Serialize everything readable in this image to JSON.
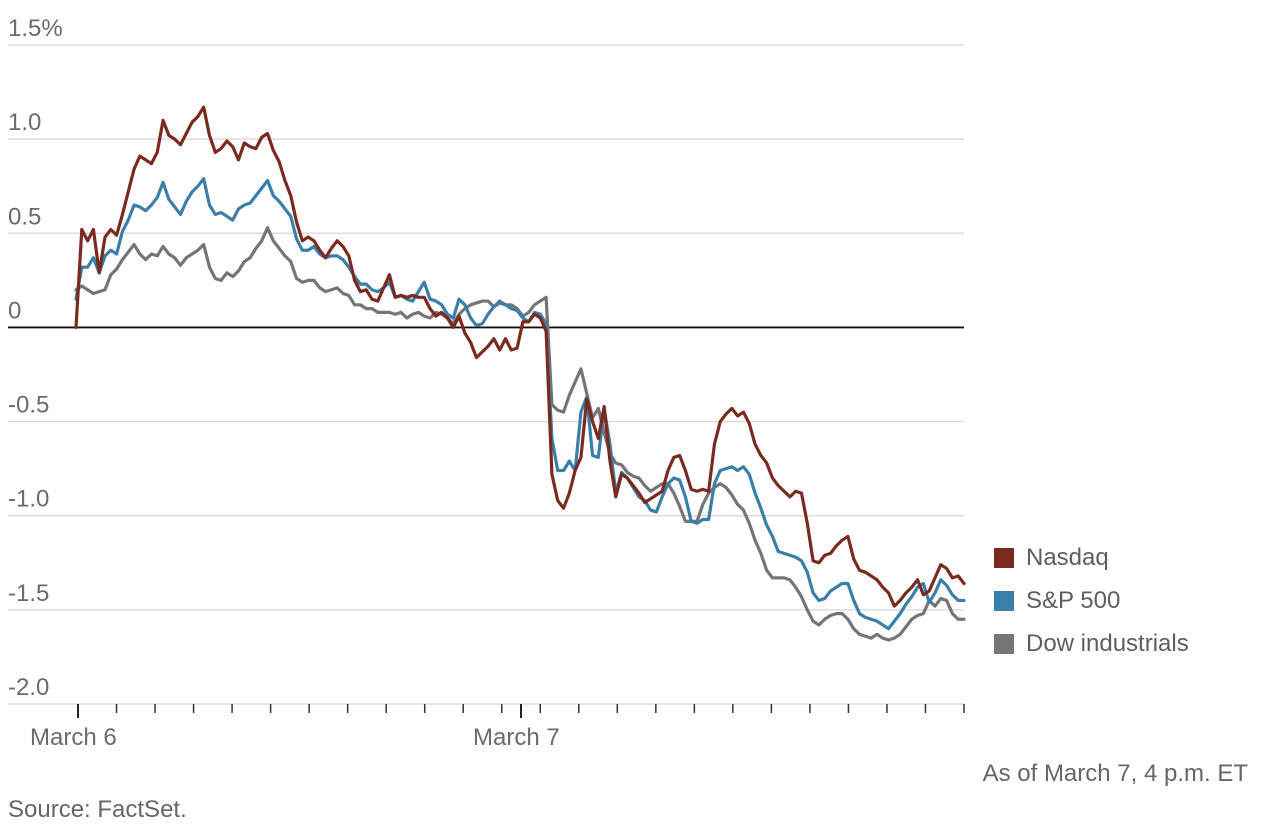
{
  "chart_data": {
    "type": "line",
    "y_ticks": [
      "1.5%",
      "1.0",
      "0.5",
      "0",
      "-0.5",
      "-1.0",
      "-1.5",
      "-2.0"
    ],
    "y_tick_values": [
      1.5,
      1.0,
      0.5,
      0,
      -0.5,
      -1.0,
      -1.5,
      -2.0
    ],
    "ylim": [
      -2.0,
      1.5
    ],
    "x_tick_labels": [
      "March 6",
      "March 7"
    ],
    "x_range": [
      0,
      12
    ],
    "x_label_positions": [
      0,
      6
    ],
    "x_minor_ticks": 24,
    "grid": true,
    "legend_position": "right",
    "series": [
      {
        "name": "Nasdaq",
        "color": "#7a2a1f",
        "values": [
          0.0,
          0.52,
          0.46,
          0.52,
          0.29,
          0.48,
          0.52,
          0.49,
          0.6,
          0.72,
          0.84,
          0.91,
          0.89,
          0.87,
          0.93,
          1.1,
          1.02,
          1.0,
          0.97,
          1.03,
          1.09,
          1.12,
          1.17,
          1.02,
          0.93,
          0.95,
          0.99,
          0.96,
          0.89,
          0.98,
          0.96,
          0.95,
          1.01,
          1.03,
          0.94,
          0.88,
          0.78,
          0.7,
          0.56,
          0.46,
          0.48,
          0.46,
          0.41,
          0.37,
          0.42,
          0.46,
          0.43,
          0.38,
          0.25,
          0.19,
          0.2,
          0.15,
          0.14,
          0.21,
          0.28,
          0.16,
          0.17,
          0.16,
          0.17,
          0.16,
          0.16,
          0.1,
          0.06,
          0.08,
          0.05,
          0.0,
          0.06,
          -0.03,
          -0.08,
          -0.16,
          -0.13,
          -0.1,
          -0.06,
          -0.12,
          -0.06,
          -0.12,
          -0.11,
          0.03,
          0.03,
          0.07,
          0.05,
          -0.02,
          -0.78,
          -0.92,
          -0.96,
          -0.88,
          -0.76,
          -0.69,
          -0.38,
          -0.5,
          -0.59,
          -0.42,
          -0.71,
          -0.9,
          -0.78,
          -0.8,
          -0.84,
          -0.88,
          -0.93,
          -0.91,
          -0.89,
          -0.87,
          -0.76,
          -0.69,
          -0.68,
          -0.76,
          -0.86,
          -0.87,
          -0.86,
          -0.87,
          -0.62,
          -0.5,
          -0.46,
          -0.43,
          -0.47,
          -0.45,
          -0.51,
          -0.62,
          -0.68,
          -0.72,
          -0.8,
          -0.84,
          -0.87,
          -0.9,
          -0.87,
          -0.88,
          -1.04,
          -1.24,
          -1.25,
          -1.21,
          -1.2,
          -1.16,
          -1.13,
          -1.11,
          -1.23,
          -1.29,
          -1.3,
          -1.32,
          -1.34,
          -1.38,
          -1.41,
          -1.48,
          -1.45,
          -1.41,
          -1.38,
          -1.34,
          -1.42,
          -1.4,
          -1.33,
          -1.26,
          -1.28,
          -1.33,
          -1.32,
          -1.36
        ]
      },
      {
        "name": "S&P 500",
        "color": "#3a7fa8",
        "values": [
          0.15,
          0.32,
          0.32,
          0.37,
          0.29,
          0.38,
          0.41,
          0.39,
          0.51,
          0.57,
          0.65,
          0.64,
          0.62,
          0.65,
          0.69,
          0.77,
          0.68,
          0.64,
          0.6,
          0.67,
          0.72,
          0.75,
          0.79,
          0.65,
          0.6,
          0.61,
          0.59,
          0.57,
          0.63,
          0.65,
          0.66,
          0.7,
          0.74,
          0.78,
          0.7,
          0.67,
          0.63,
          0.59,
          0.47,
          0.41,
          0.41,
          0.43,
          0.39,
          0.37,
          0.38,
          0.38,
          0.36,
          0.32,
          0.27,
          0.23,
          0.23,
          0.2,
          0.19,
          0.21,
          0.24,
          0.16,
          0.17,
          0.15,
          0.14,
          0.19,
          0.24,
          0.15,
          0.14,
          0.12,
          0.07,
          0.05,
          0.15,
          0.12,
          0.05,
          0.01,
          0.02,
          0.07,
          0.11,
          0.13,
          0.12,
          0.1,
          0.09,
          0.05,
          0.03,
          0.08,
          0.07,
          0.02,
          -0.59,
          -0.76,
          -0.76,
          -0.71,
          -0.76,
          -0.45,
          -0.37,
          -0.68,
          -0.69,
          -0.43,
          -0.62,
          -0.88,
          -0.77,
          -0.8,
          -0.85,
          -0.9,
          -0.92,
          -0.97,
          -0.98,
          -0.9,
          -0.83,
          -0.8,
          -0.81,
          -0.9,
          -1.03,
          -1.04,
          -1.02,
          -1.02,
          -0.83,
          -0.76,
          -0.75,
          -0.74,
          -0.76,
          -0.74,
          -0.78,
          -0.88,
          -0.96,
          -1.05,
          -1.11,
          -1.19,
          -1.2,
          -1.21,
          -1.22,
          -1.24,
          -1.3,
          -1.41,
          -1.45,
          -1.44,
          -1.4,
          -1.38,
          -1.36,
          -1.36,
          -1.45,
          -1.52,
          -1.54,
          -1.55,
          -1.56,
          -1.58,
          -1.6,
          -1.56,
          -1.52,
          -1.47,
          -1.43,
          -1.38,
          -1.36,
          -1.46,
          -1.41,
          -1.34,
          -1.37,
          -1.42,
          -1.45,
          -1.45
        ]
      },
      {
        "name": "Dow industrials",
        "color": "#757575",
        "values": [
          0.2,
          0.22,
          0.2,
          0.18,
          0.19,
          0.2,
          0.28,
          0.31,
          0.36,
          0.4,
          0.44,
          0.39,
          0.36,
          0.39,
          0.38,
          0.43,
          0.39,
          0.37,
          0.33,
          0.37,
          0.39,
          0.41,
          0.44,
          0.32,
          0.26,
          0.25,
          0.29,
          0.27,
          0.3,
          0.35,
          0.37,
          0.42,
          0.46,
          0.53,
          0.46,
          0.42,
          0.38,
          0.35,
          0.26,
          0.24,
          0.25,
          0.25,
          0.21,
          0.19,
          0.2,
          0.21,
          0.18,
          0.17,
          0.12,
          0.12,
          0.1,
          0.1,
          0.08,
          0.08,
          0.08,
          0.07,
          0.08,
          0.05,
          0.07,
          0.08,
          0.06,
          0.05,
          0.08,
          0.07,
          0.05,
          0.02,
          0.07,
          0.1,
          0.12,
          0.13,
          0.14,
          0.14,
          0.11,
          0.14,
          0.12,
          0.12,
          0.1,
          0.06,
          0.08,
          0.12,
          0.14,
          0.16,
          -0.41,
          -0.44,
          -0.45,
          -0.36,
          -0.29,
          -0.22,
          -0.35,
          -0.48,
          -0.43,
          -0.56,
          -0.67,
          -0.72,
          -0.73,
          -0.77,
          -0.79,
          -0.8,
          -0.84,
          -0.87,
          -0.85,
          -0.83,
          -0.83,
          -0.88,
          -0.95,
          -1.03,
          -1.03,
          -1.03,
          -0.94,
          -0.88,
          -0.85,
          -0.83,
          -0.85,
          -0.89,
          -0.94,
          -0.97,
          -1.04,
          -1.13,
          -1.2,
          -1.29,
          -1.33,
          -1.33,
          -1.33,
          -1.34,
          -1.38,
          -1.43,
          -1.5,
          -1.56,
          -1.58,
          -1.55,
          -1.53,
          -1.52,
          -1.52,
          -1.55,
          -1.6,
          -1.63,
          -1.64,
          -1.65,
          -1.63,
          -1.65,
          -1.66,
          -1.65,
          -1.63,
          -1.59,
          -1.55,
          -1.53,
          -1.52,
          -1.45,
          -1.48,
          -1.44,
          -1.45,
          -1.52,
          -1.55,
          -1.55
        ]
      }
    ]
  },
  "note": "As of March 7, 4 p.m. ET",
  "source": "Source: FactSet."
}
